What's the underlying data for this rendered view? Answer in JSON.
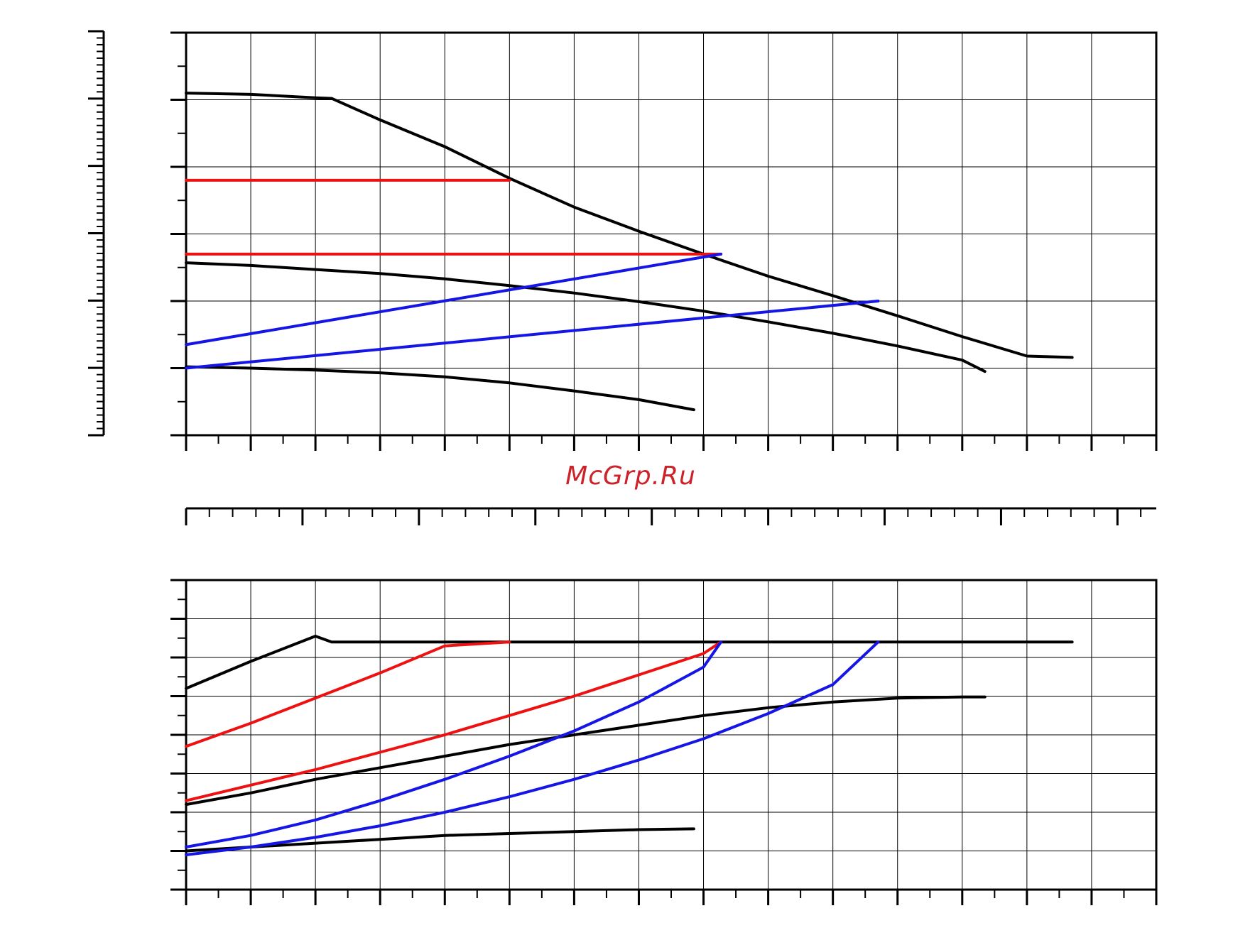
{
  "watermark": {
    "text": "McGrp.Ru",
    "color": "#cc2229"
  },
  "colors": {
    "black": "#000000",
    "red": "#ee1111",
    "blue": "#1515e6",
    "grid": "#000000"
  },
  "chart_data": [
    {
      "type": "line",
      "title": "",
      "xlabel": "",
      "ylabel": "",
      "grid": true,
      "xlim": [
        0,
        15
      ],
      "ylim": [
        0,
        6
      ],
      "x_major_step": 1,
      "x_minor_step": 0.5,
      "y_major_step": 1,
      "y_minor_step": 0.5,
      "series": [
        {
          "color": "black",
          "x": [
            0,
            1,
            2,
            2.25,
            3,
            4,
            5,
            6,
            7,
            8,
            9,
            10,
            11,
            12,
            13,
            13.7
          ],
          "y": [
            5.1,
            5.08,
            5.03,
            5.02,
            4.7,
            4.3,
            3.83,
            3.4,
            3.04,
            2.7,
            2.37,
            2.08,
            1.78,
            1.47,
            1.18,
            1.16
          ]
        },
        {
          "color": "black",
          "x": [
            0,
            1,
            2,
            3,
            4,
            5,
            6,
            7,
            8,
            9,
            10,
            11,
            12,
            12.35
          ],
          "y": [
            2.57,
            2.53,
            2.47,
            2.41,
            2.33,
            2.23,
            2.12,
            1.99,
            1.85,
            1.69,
            1.52,
            1.33,
            1.12,
            0.95
          ]
        },
        {
          "color": "black",
          "x": [
            0,
            1,
            2,
            3,
            4,
            5,
            6,
            7,
            7.85
          ],
          "y": [
            1.02,
            1.0,
            0.97,
            0.93,
            0.87,
            0.78,
            0.66,
            0.53,
            0.38
          ]
        },
        {
          "color": "red",
          "x": [
            0,
            5
          ],
          "y": [
            3.8,
            3.8
          ]
        },
        {
          "color": "red",
          "x": [
            0,
            8.27
          ],
          "y": [
            2.7,
            2.7
          ]
        },
        {
          "color": "blue",
          "x": [
            0,
            8.27
          ],
          "y": [
            1.35,
            2.7
          ]
        },
        {
          "color": "blue",
          "x": [
            0,
            10.7
          ],
          "y": [
            1.0,
            2.0
          ]
        }
      ]
    },
    {
      "type": "line",
      "title": "",
      "xlabel": "",
      "ylabel": "",
      "grid": false,
      "xlim": [
        0,
        15
      ],
      "x_major_step": 1.8,
      "x_minor_step": 0.36,
      "series": []
    },
    {
      "type": "line",
      "title": "",
      "xlabel": "",
      "ylabel": "",
      "grid": true,
      "xlim": [
        0,
        15
      ],
      "ylim": [
        0,
        8
      ],
      "x_major_step": 1,
      "x_minor_step": 0.5,
      "y_major_step": 1,
      "y_minor_step": 0.5,
      "series": [
        {
          "color": "black",
          "x": [
            0,
            1,
            2,
            2.25,
            4,
            6,
            8,
            10,
            12,
            13.7
          ],
          "y": [
            5.2,
            5.9,
            6.55,
            6.4,
            6.4,
            6.4,
            6.4,
            6.4,
            6.4,
            6.4
          ]
        },
        {
          "color": "black",
          "x": [
            0,
            1,
            2,
            3,
            4,
            5,
            6,
            7,
            8,
            9,
            10,
            11,
            12,
            12.35
          ],
          "y": [
            2.2,
            2.5,
            2.85,
            3.15,
            3.45,
            3.75,
            4.0,
            4.25,
            4.5,
            4.7,
            4.85,
            4.95,
            4.98,
            4.98
          ]
        },
        {
          "color": "black",
          "x": [
            0,
            1,
            2,
            3,
            4,
            5,
            6,
            7,
            7.85
          ],
          "y": [
            1.0,
            1.1,
            1.2,
            1.3,
            1.4,
            1.45,
            1.5,
            1.55,
            1.57
          ]
        },
        {
          "color": "red",
          "x": [
            0,
            1,
            2,
            3,
            4,
            5
          ],
          "y": [
            3.7,
            4.3,
            4.95,
            5.6,
            6.3,
            6.4
          ]
        },
        {
          "color": "red",
          "x": [
            0,
            1,
            2,
            3,
            4,
            5,
            6,
            7,
            8,
            8.27
          ],
          "y": [
            2.3,
            2.7,
            3.1,
            3.55,
            4.0,
            4.5,
            5.0,
            5.55,
            6.1,
            6.4
          ]
        },
        {
          "color": "blue",
          "x": [
            0,
            1,
            2,
            3,
            4,
            5,
            6,
            7,
            8,
            8.27
          ],
          "y": [
            1.1,
            1.4,
            1.8,
            2.3,
            2.85,
            3.45,
            4.1,
            4.85,
            5.75,
            6.4
          ]
        },
        {
          "color": "blue",
          "x": [
            0,
            1,
            2,
            3,
            4,
            5,
            6,
            7,
            8,
            9,
            10,
            10.7
          ],
          "y": [
            0.9,
            1.1,
            1.35,
            1.65,
            2.0,
            2.4,
            2.85,
            3.35,
            3.9,
            4.55,
            5.3,
            6.4
          ]
        }
      ]
    }
  ]
}
